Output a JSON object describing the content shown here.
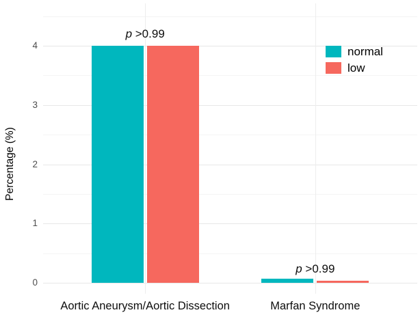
{
  "chart_data": {
    "type": "bar",
    "title": "",
    "xlabel": "",
    "ylabel": "Percentage (%)",
    "categories": [
      "Aortic Aneurysm/Aortic Dissection",
      "Marfan Syndrome"
    ],
    "series": [
      {
        "name": "normal",
        "color": "#00B7BE",
        "values": [
          4.0,
          0.07
        ]
      },
      {
        "name": "low",
        "color": "#F6685E",
        "values": [
          4.0,
          0.04
        ]
      }
    ],
    "annotations": [
      {
        "text_italic": "p",
        "text_rest": " >0.99",
        "category_index": 0,
        "y": 4.31
      },
      {
        "text_italic": "p",
        "text_rest": " >0.99",
        "category_index": 1,
        "y": 0.35
      }
    ],
    "y_ticks": [
      0,
      1,
      2,
      3,
      4
    ],
    "y_minor_ticks": [
      0.5,
      1.5,
      2.5,
      3.5,
      4.5
    ],
    "ylim": [
      -0.24,
      4.66
    ],
    "grid": "horizontal major+minor, vertical at category centers",
    "legend_position": "top-right",
    "background": "#ffffff"
  }
}
